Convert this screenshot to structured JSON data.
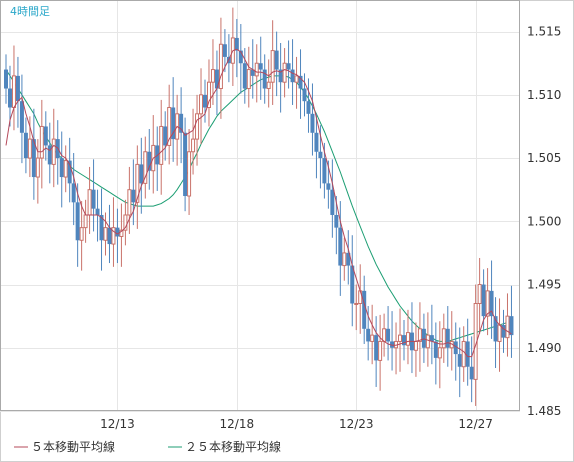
{
  "chart_data": {
    "type": "candlestick",
    "title": "4時間足",
    "ylim": [
      1.485,
      1.5175
    ],
    "y_ticks": [
      "1.485",
      "1.490",
      "1.495",
      "1.500",
      "1.505",
      "1.510",
      "1.515"
    ],
    "x_ticks": [
      {
        "index": 28,
        "label": "12/13"
      },
      {
        "index": 58,
        "label": "12/18"
      },
      {
        "index": 88,
        "label": "12/23"
      },
      {
        "index": 118,
        "label": "12/27"
      }
    ],
    "grid": true,
    "colors": {
      "up": "#c9726a",
      "down": "#4f85bd",
      "ma5": "#b5485a",
      "ma25": "#1c9e73",
      "title": "#2aa7c9"
    },
    "legend": [
      {
        "label": "５本移動平均線",
        "color": "#b5485a"
      },
      {
        "label": "２５本移動平均線",
        "color": "#1c9e73"
      }
    ],
    "closes": [
      1.5105,
      1.509,
      1.5115,
      1.5095,
      1.507,
      1.505,
      1.5065,
      1.5035,
      1.505,
      1.5075,
      1.506,
      1.5045,
      1.5065,
      1.505,
      1.5035,
      1.5048,
      1.503,
      1.5015,
      1.4985,
      1.4995,
      1.5005,
      1.5025,
      1.501,
      1.5005,
      1.4985,
      1.4995,
      1.4982,
      1.4995,
      1.4988,
      1.4993,
      1.5005,
      1.5025,
      1.5015,
      1.5045,
      1.503,
      1.5055,
      1.504,
      1.506,
      1.5045,
      1.5075,
      1.506,
      1.509,
      1.5065,
      1.5085,
      1.507,
      1.502,
      1.5055,
      1.5065,
      1.5085,
      1.51,
      1.509,
      1.511,
      1.512,
      1.5105,
      1.514,
      1.513,
      1.5125,
      1.5145,
      1.5135,
      1.5125,
      1.5105,
      1.512,
      1.5115,
      1.5125,
      1.512,
      1.5105,
      1.511,
      1.5135,
      1.512,
      1.511,
      1.5125,
      1.512,
      1.511,
      1.5115,
      1.5105,
      1.5095,
      1.5085,
      1.507,
      1.5055,
      1.505,
      1.503,
      1.5025,
      1.5005,
      1.4995,
      1.4965,
      1.4975,
      1.4965,
      1.4935,
      1.4935,
      1.4945,
      1.4915,
      1.4905,
      1.491,
      1.489,
      1.4905,
      1.4915,
      1.4905,
      1.49,
      1.4905,
      1.491,
      1.4902,
      1.4912,
      1.4898,
      1.4905,
      1.4915,
      1.49,
      1.491,
      1.4905,
      1.4892,
      1.49,
      1.4915,
      1.49,
      1.4905,
      1.4895,
      1.4885,
      1.4905,
      1.4885,
      1.4875,
      1.4935,
      1.495,
      1.4925,
      1.4945,
      1.4925,
      1.4905,
      1.4918,
      1.4908,
      1.4925,
      1.491
    ],
    "ma5": [
      1.506,
      1.508,
      1.509,
      1.5095,
      1.5098,
      1.5085,
      1.5075,
      1.5063,
      1.5055,
      1.5055,
      1.5058,
      1.5056,
      1.506,
      1.5058,
      1.5052,
      1.505,
      1.5045,
      1.5035,
      1.5022,
      1.5012,
      1.5005,
      1.5005,
      1.5005,
      1.5005,
      1.5003,
      1.5,
      1.4995,
      1.4992,
      1.499,
      1.4992,
      1.4995,
      1.5002,
      1.5008,
      1.5018,
      1.5028,
      1.5035,
      1.5043,
      1.505,
      1.5052,
      1.5055,
      1.5058,
      1.5065,
      1.507,
      1.5075,
      1.5073,
      1.5068,
      1.507,
      1.5072,
      1.508,
      1.5082,
      1.5085,
      1.5095,
      1.51,
      1.5105,
      1.5115,
      1.5122,
      1.5128,
      1.5135,
      1.5136,
      1.5134,
      1.5128,
      1.5122,
      1.512,
      1.5118,
      1.5118,
      1.5117,
      1.5115,
      1.5118,
      1.5119,
      1.5118,
      1.512,
      1.5119,
      1.5117,
      1.5116,
      1.5113,
      1.511,
      1.5103,
      1.5095,
      1.5082,
      1.5068,
      1.5055,
      1.5043,
      1.503,
      1.5015,
      1.5,
      1.4988,
      1.4978,
      1.4965,
      1.4955,
      1.4945,
      1.4935,
      1.4925,
      1.4918,
      1.4912,
      1.4908,
      1.4905,
      1.4903,
      1.4902,
      1.4902,
      1.4903,
      1.4904,
      1.4905,
      1.4905,
      1.4905,
      1.4906,
      1.4907,
      1.4906,
      1.4905,
      1.4904,
      1.4903,
      1.4903,
      1.4904,
      1.4903,
      1.4901,
      1.4899,
      1.4897,
      1.4893,
      1.4893,
      1.4902,
      1.4912,
      1.4922,
      1.4927,
      1.4929,
      1.4922,
      1.4918,
      1.4915,
      1.4913,
      1.4911
    ],
    "ma25": [
      1.512,
      1.5115,
      1.511,
      1.5105,
      1.51,
      1.5095,
      1.509,
      1.5085,
      1.5078,
      1.5072,
      1.5067,
      1.5062,
      1.5057,
      1.5053,
      1.505,
      1.5047,
      1.5044,
      1.5041,
      1.5039,
      1.5037,
      1.5035,
      1.5033,
      1.5031,
      1.5029,
      1.5027,
      1.5025,
      1.5023,
      1.5021,
      1.5019,
      1.5017,
      1.5015,
      1.5014,
      1.5013,
      1.5012,
      1.5012,
      1.5012,
      1.5012,
      1.5012,
      1.5013,
      1.5014,
      1.5016,
      1.5018,
      1.5021,
      1.5025,
      1.503,
      1.5035,
      1.5041,
      1.5048,
      1.5054,
      1.5061,
      1.5067,
      1.5073,
      1.5078,
      1.5083,
      1.5087,
      1.509,
      1.5093,
      1.5096,
      1.5099,
      1.5102,
      1.5104,
      1.5106,
      1.5108,
      1.511,
      1.5112,
      1.5113,
      1.5114,
      1.5115,
      1.5115,
      1.5115,
      1.5115,
      1.5114,
      1.5112,
      1.511,
      1.5106,
      1.5102,
      1.5097,
      1.5091,
      1.5085,
      1.5078,
      1.5071,
      1.5063,
      1.5055,
      1.5047,
      1.5039,
      1.503,
      1.5021,
      1.5012,
      1.5004,
      1.4996,
      1.4988,
      1.498,
      1.4973,
      1.4966,
      1.496,
      1.4954,
      1.4948,
      1.4943,
      1.4938,
      1.4933,
      1.4929,
      1.4925,
      1.4921,
      1.4918,
      1.4915,
      1.4912,
      1.491,
      1.4908,
      1.4906,
      1.4905,
      1.4905,
      1.4905,
      1.4906,
      1.4907,
      1.4908,
      1.4909,
      1.491,
      1.4911,
      1.4912,
      1.4913,
      1.4914,
      1.4915,
      1.4916,
      1.4917,
      1.4918,
      1.4919,
      1.492,
      1.4921
    ]
  }
}
